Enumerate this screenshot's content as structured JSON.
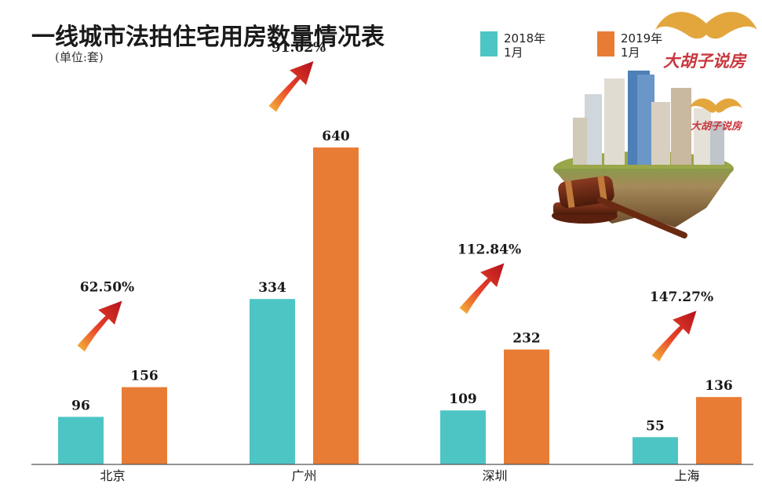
{
  "title": "一线城市法拍住宅用房数量情况表",
  "unit": "(单位:套)",
  "legend": [
    {
      "line1": "2018年",
      "line2": "1月",
      "color": "#4ec5c5"
    },
    {
      "line1": "2019年",
      "line2": "1月",
      "color": "#e97c35"
    }
  ],
  "logo": {
    "main": "大胡子说房",
    "small": "大胡子说房"
  },
  "icons": [
    "mustache-icon",
    "gavel-icon",
    "city-island-icon",
    "arrow-up-icon"
  ],
  "chart_data": {
    "type": "bar",
    "title": "一线城市法拍住宅用房数量情况表",
    "ylabel": "(单位:套)",
    "categories": [
      "北京",
      "广州",
      "深圳",
      "上海"
    ],
    "series": [
      {
        "name": "2018年1月",
        "values": [
          96,
          334,
          109,
          55
        ],
        "color": "#4ec5c5"
      },
      {
        "name": "2019年1月",
        "values": [
          156,
          640,
          232,
          136
        ],
        "color": "#e97c35"
      }
    ],
    "growth_labels": [
      "62.50%",
      "91.62%",
      "112.84%",
      "147.27%"
    ],
    "ylim": [
      0,
      640
    ],
    "grid": false,
    "legend_position": "top-right"
  }
}
